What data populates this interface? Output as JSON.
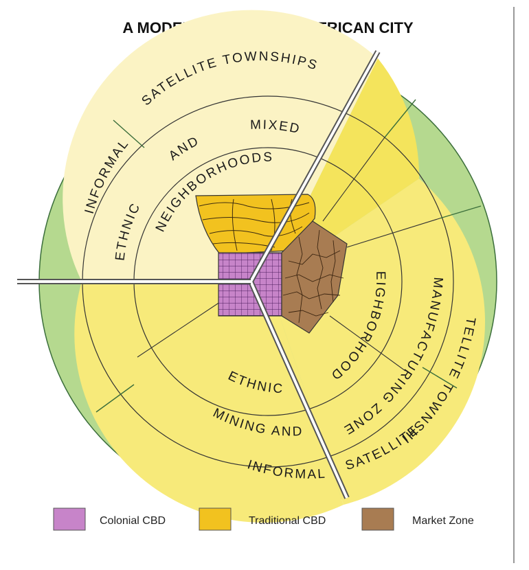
{
  "title": "A MODEL SUBSAHARAN AFRICAN CITY",
  "labels": {
    "informal_top_a": "INFORMAL",
    "satellite_top": "SATELLITE TOWNSHIPS",
    "mixed": "MIXED",
    "and_top": "AND",
    "ethnic_top": "ETHNIC",
    "neighborhoods_top": "NEIGHBORHOODS",
    "neighborhoods_right": "NEIGHBORHOODS",
    "ethnic_bottom": "ETHNIC",
    "manufacturing": "MANUFACTURING ZONE",
    "mining_and": "MINING AND",
    "satellite_right": "SATELLITE TOWNSHIPS",
    "informal_bottom": "INFORMAL",
    "satellite_bottom": "SATELLITE"
  },
  "legend": [
    {
      "label": "Colonial CBD",
      "color": "#c784c9"
    },
    {
      "label": "Traditional CBD",
      "color": "#f2c21f"
    },
    {
      "label": "Market Zone",
      "color": "#a87c52"
    }
  ],
  "colors": {
    "outer_ring": "#b5d98f",
    "ring_line": "#3b6e3b",
    "mixed_zone": "#fbf3c4",
    "ethnic_yellow": "#f7ea7a",
    "inner_yellow": "#f4e45c",
    "colonial": "#c784c9",
    "traditional": "#f2c21f",
    "market": "#a87c52"
  }
}
